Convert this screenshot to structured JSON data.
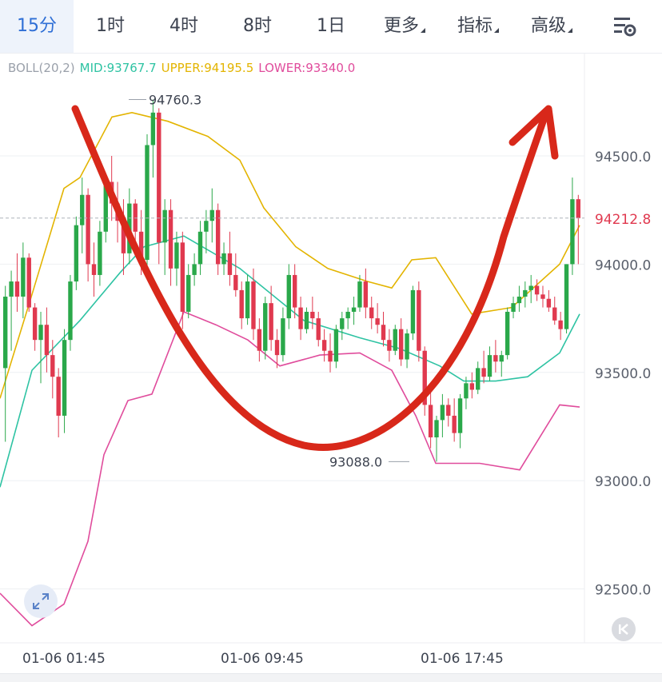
{
  "tabs": [
    {
      "label": "15分",
      "active": true
    },
    {
      "label": "1时"
    },
    {
      "label": "4时"
    },
    {
      "label": "8时"
    },
    {
      "label": "1日"
    },
    {
      "label": "更多",
      "dropdown": true
    },
    {
      "label": "指标",
      "dropdown": true
    },
    {
      "label": "高级",
      "dropdown": true
    }
  ],
  "settings_icon": "chart-settings-icon",
  "indicator": {
    "name": "BOLL(20,2)",
    "mid": "MID:93767.7",
    "upper": "UPPER:94195.5",
    "lower": "LOWER:93340.0",
    "colors": {
      "name": "#9aa0aa",
      "mid": "#2ec3a3",
      "upper": "#e3b400",
      "lower": "#e04c9c"
    }
  },
  "chart_data": {
    "type": "candlestick",
    "y_axis": {
      "ticks": [
        94500,
        94000,
        93500,
        93000,
        92500
      ],
      "labels": [
        "94500.0",
        "94000.0",
        "93500.0",
        "93000.0",
        "92500.0"
      ],
      "position": "right"
    },
    "x_axis": {
      "labels": [
        "01-06 01:45",
        "01-06 09:45",
        "01-06 17:45"
      ]
    },
    "current_price": {
      "value": 94212.8,
      "label": "94212.8"
    },
    "annotations": [
      {
        "text": "94760.3",
        "value": 94760.3,
        "type": "high"
      },
      {
        "text": "93088.0",
        "value": 93088.0,
        "type": "low"
      }
    ],
    "colors": {
      "up": "#2aa84a",
      "down": "#e0394f",
      "mid": "#2ec3a3",
      "upper": "#e3b400",
      "lower": "#e04c9c",
      "drawing": "#d8281a"
    },
    "candles": [
      [
        93520,
        93900,
        93180,
        93850
      ],
      [
        93850,
        93970,
        93600,
        93920
      ],
      [
        93920,
        94050,
        93780,
        93850
      ],
      [
        93850,
        94100,
        93750,
        94030
      ],
      [
        94030,
        94050,
        93780,
        93800
      ],
      [
        93800,
        93820,
        93600,
        93650
      ],
      [
        93650,
        93780,
        93450,
        93720
      ],
      [
        93720,
        93800,
        93500,
        93580
      ],
      [
        93580,
        93650,
        93380,
        93480
      ],
      [
        93480,
        93520,
        93200,
        93300
      ],
      [
        93300,
        93700,
        93220,
        93650
      ],
      [
        93650,
        93950,
        93600,
        93920
      ],
      [
        93920,
        94220,
        93880,
        94180
      ],
      [
        94180,
        94400,
        94050,
        94320
      ],
      [
        94320,
        94350,
        93920,
        94000
      ],
      [
        94000,
        94100,
        93850,
        93950
      ],
      [
        93950,
        94200,
        93900,
        94150
      ],
      [
        94150,
        94420,
        94100,
        94380
      ],
      [
        94380,
        94500,
        94200,
        94280
      ],
      [
        94280,
        94380,
        94100,
        94200
      ],
      [
        94200,
        94300,
        93950,
        94050
      ],
      [
        94050,
        94350,
        94000,
        94280
      ],
      [
        94280,
        94300,
        94050,
        94150
      ],
      [
        94150,
        94250,
        93950,
        94020
      ],
      [
        94020,
        94600,
        93980,
        94550
      ],
      [
        94550,
        94760,
        94400,
        94700
      ],
      [
        94700,
        94720,
        94000,
        94100
      ],
      [
        94100,
        94300,
        93950,
        94250
      ],
      [
        94250,
        94300,
        93900,
        93980
      ],
      [
        93980,
        94150,
        93900,
        94100
      ],
      [
        94100,
        94150,
        93700,
        93780
      ],
      [
        93780,
        94000,
        93750,
        93950
      ],
      [
        93950,
        94050,
        93900,
        94000
      ],
      [
        94000,
        94200,
        93950,
        94150
      ],
      [
        94150,
        94250,
        94050,
        94200
      ],
      [
        94200,
        94350,
        94100,
        94250
      ],
      [
        94250,
        94280,
        93950,
        94000
      ],
      [
        94000,
        94100,
        93950,
        94050
      ],
      [
        94050,
        94150,
        93900,
        93950
      ],
      [
        93950,
        94050,
        93850,
        93880
      ],
      [
        93880,
        93920,
        93700,
        93750
      ],
      [
        93750,
        93950,
        93720,
        93920
      ],
      [
        93920,
        93980,
        93650,
        93700
      ],
      [
        93700,
        93750,
        93550,
        93600
      ],
      [
        93600,
        93850,
        93560,
        93820
      ],
      [
        93820,
        93900,
        93600,
        93650
      ],
      [
        93650,
        93700,
        93520,
        93580
      ],
      [
        93580,
        93800,
        93550,
        93750
      ],
      [
        93750,
        94000,
        93700,
        93950
      ],
      [
        93950,
        94000,
        93750,
        93800
      ],
      [
        93800,
        93850,
        93650,
        93700
      ],
      [
        93700,
        93800,
        93680,
        93780
      ],
      [
        93780,
        93850,
        93700,
        93750
      ],
      [
        93750,
        93780,
        93620,
        93650
      ],
      [
        93650,
        93700,
        93550,
        93600
      ],
      [
        93600,
        93680,
        93500,
        93550
      ],
      [
        93550,
        93720,
        93520,
        93700
      ],
      [
        93700,
        93780,
        93650,
        93750
      ],
      [
        93750,
        93800,
        93700,
        93780
      ],
      [
        93780,
        93850,
        93720,
        93800
      ],
      [
        93800,
        93950,
        93780,
        93920
      ],
      [
        93920,
        93980,
        93750,
        93800
      ],
      [
        93800,
        93850,
        93700,
        93750
      ],
      [
        93750,
        93820,
        93680,
        93720
      ],
      [
        93720,
        93780,
        93620,
        93650
      ],
      [
        93650,
        93700,
        93550,
        93600
      ],
      [
        93600,
        93720,
        93580,
        93700
      ],
      [
        93700,
        93750,
        93530,
        93560
      ],
      [
        93560,
        93700,
        93520,
        93680
      ],
      [
        93680,
        93900,
        93650,
        93880
      ],
      [
        93880,
        93920,
        93550,
        93600
      ],
      [
        93600,
        93620,
        93300,
        93350
      ],
      [
        93350,
        93420,
        93150,
        93200
      ],
      [
        93200,
        93300,
        93088,
        93280
      ],
      [
        93280,
        93400,
        93200,
        93350
      ],
      [
        93350,
        93380,
        93250,
        93300
      ],
      [
        93300,
        93380,
        93180,
        93220
      ],
      [
        93220,
        93400,
        93150,
        93380
      ],
      [
        93380,
        93480,
        93330,
        93450
      ],
      [
        93450,
        93500,
        93380,
        93420
      ],
      [
        93420,
        93550,
        93400,
        93520
      ],
      [
        93520,
        93600,
        93450,
        93480
      ],
      [
        93480,
        93620,
        93460,
        93580
      ],
      [
        93580,
        93650,
        93500,
        93550
      ],
      [
        93550,
        93600,
        93480,
        93580
      ],
      [
        93580,
        93800,
        93560,
        93780
      ],
      [
        93780,
        93850,
        93750,
        93820
      ],
      [
        93820,
        93900,
        93780,
        93850
      ],
      [
        93850,
        93920,
        93800,
        93880
      ],
      [
        93880,
        93950,
        93820,
        93900
      ],
      [
        93900,
        93930,
        93830,
        93860
      ],
      [
        93860,
        93900,
        93800,
        93840
      ],
      [
        93840,
        93880,
        93780,
        93800
      ],
      [
        93800,
        93850,
        93720,
        93740
      ],
      [
        93740,
        93780,
        93650,
        93700
      ],
      [
        93700,
        94000,
        93680,
        94000
      ],
      [
        94000,
        94400,
        93950,
        94300
      ],
      [
        94300,
        94320,
        94000,
        94212.8
      ]
    ],
    "boll_mid": [
      [
        0,
        92970
      ],
      [
        40,
        93510
      ],
      [
        100,
        93740
      ],
      [
        150,
        93960
      ],
      [
        180,
        94080
      ],
      [
        230,
        94130
      ],
      [
        300,
        93980
      ],
      [
        380,
        93740
      ],
      [
        450,
        93660
      ],
      [
        500,
        93610
      ],
      [
        550,
        93530
      ],
      [
        580,
        93460
      ],
      [
        620,
        93460
      ],
      [
        660,
        93480
      ],
      [
        700,
        93590
      ],
      [
        725,
        93770
      ]
    ],
    "boll_upper": [
      [
        0,
        93380
      ],
      [
        40,
        93860
      ],
      [
        80,
        94350
      ],
      [
        100,
        94400
      ],
      [
        140,
        94680
      ],
      [
        165,
        94700
      ],
      [
        210,
        94660
      ],
      [
        260,
        94590
      ],
      [
        300,
        94480
      ],
      [
        330,
        94260
      ],
      [
        370,
        94080
      ],
      [
        410,
        93980
      ],
      [
        460,
        93920
      ],
      [
        490,
        93890
      ],
      [
        515,
        94020
      ],
      [
        545,
        94030
      ],
      [
        590,
        93770
      ],
      [
        640,
        93800
      ],
      [
        700,
        94000
      ],
      [
        725,
        94180
      ]
    ],
    "boll_lower": [
      [
        0,
        92480
      ],
      [
        40,
        92330
      ],
      [
        80,
        92430
      ],
      [
        110,
        92720
      ],
      [
        130,
        93120
      ],
      [
        160,
        93370
      ],
      [
        190,
        93400
      ],
      [
        230,
        93780
      ],
      [
        270,
        93720
      ],
      [
        310,
        93650
      ],
      [
        350,
        93530
      ],
      [
        400,
        93580
      ],
      [
        450,
        93590
      ],
      [
        490,
        93510
      ],
      [
        520,
        93300
      ],
      [
        545,
        93080
      ],
      [
        600,
        93080
      ],
      [
        650,
        93050
      ],
      [
        700,
        93350
      ],
      [
        725,
        93340
      ]
    ],
    "drawing": {
      "description": "red hand-drawn U arrow",
      "color": "#d8281a"
    }
  }
}
